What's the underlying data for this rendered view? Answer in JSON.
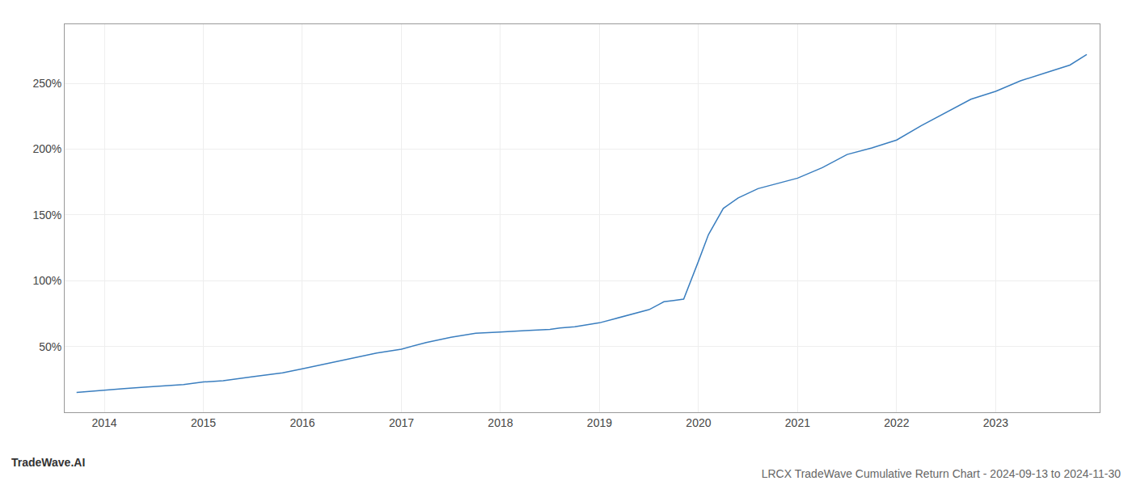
{
  "chart_data": {
    "type": "line",
    "title": "LRCX TradeWave Cumulative Return Chart - 2024-09-13 to 2024-11-30",
    "annotations": [
      "TradeWave.AI"
    ],
    "x": [
      2013.72,
      2014.0,
      2014.2,
      2014.4,
      2014.6,
      2014.8,
      2015.0,
      2015.2,
      2015.5,
      2015.8,
      2016.0,
      2016.25,
      2016.5,
      2016.75,
      2017.0,
      2017.25,
      2017.5,
      2017.75,
      2018.0,
      2018.1,
      2018.25,
      2018.5,
      2018.6,
      2018.75,
      2019.0,
      2019.15,
      2019.3,
      2019.5,
      2019.6,
      2019.62,
      2019.65,
      2019.75,
      2019.85,
      2020.0,
      2020.1,
      2020.25,
      2020.4,
      2020.6,
      2020.75,
      2021.0,
      2021.25,
      2021.5,
      2021.75,
      2022.0,
      2022.25,
      2022.5,
      2022.75,
      2023.0,
      2023.25,
      2023.5,
      2023.75,
      2023.92
    ],
    "values": [
      15,
      17,
      18,
      19,
      20,
      21,
      23,
      24,
      27,
      30,
      33,
      37,
      41,
      45,
      48,
      53,
      57,
      60,
      61,
      61.5,
      62,
      63,
      64,
      65,
      68,
      71,
      74,
      78,
      82,
      83,
      84,
      85,
      86,
      115,
      135,
      155,
      163,
      170,
      173,
      178,
      186,
      196,
      201,
      207,
      218,
      228,
      238,
      244,
      252,
      258,
      264,
      272
    ],
    "color": "#3a7ebf",
    "xlim": [
      2013.6,
      2024.05
    ],
    "ylim": [
      0,
      295
    ],
    "xticks": [
      2014,
      2015,
      2016,
      2017,
      2018,
      2019,
      2020,
      2021,
      2022,
      2023
    ],
    "yticks": [
      {
        "value": 50,
        "label": "50%"
      },
      {
        "value": 100,
        "label": "100%"
      },
      {
        "value": 150,
        "label": "150%"
      },
      {
        "value": 200,
        "label": "200%"
      },
      {
        "value": 250,
        "label": "250%"
      }
    ],
    "grid": true
  }
}
